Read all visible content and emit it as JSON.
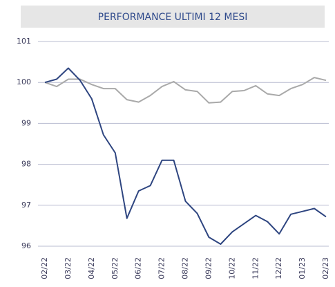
{
  "chart_data": {
    "type": "line",
    "title": "PERFORMANCE ULTIMI 12 MESI",
    "categories": [
      "02/22",
      null,
      "03/22",
      null,
      "04/22",
      null,
      "05/22",
      null,
      "06/22",
      null,
      "07/22",
      null,
      "08/22",
      null,
      "09/22",
      null,
      "10/22",
      null,
      "11/22",
      null,
      "12/22",
      null,
      "01/23",
      null,
      "02/23"
    ],
    "series": [
      {
        "color": "#2e4580",
        "values": [
          100.0,
          100.08,
          100.35,
          100.05,
          99.6,
          98.72,
          98.28,
          96.68,
          97.35,
          97.48,
          98.1,
          98.1,
          97.1,
          96.8,
          96.22,
          96.05,
          96.35,
          96.55,
          96.75,
          96.6,
          96.3,
          96.78,
          96.85,
          96.92,
          96.72
        ]
      },
      {
        "color": "#a9a9a9",
        "values": [
          100.0,
          99.9,
          100.08,
          100.08,
          99.95,
          99.85,
          99.85,
          99.58,
          99.52,
          99.68,
          99.9,
          100.02,
          99.82,
          99.78,
          99.5,
          99.52,
          99.78,
          99.8,
          99.92,
          99.72,
          99.68,
          99.85,
          99.95,
          100.12,
          100.05
        ]
      }
    ],
    "ylim": [
      96,
      101
    ],
    "yticks": [
      96,
      97,
      98,
      99,
      100,
      101
    ],
    "grid": true
  }
}
